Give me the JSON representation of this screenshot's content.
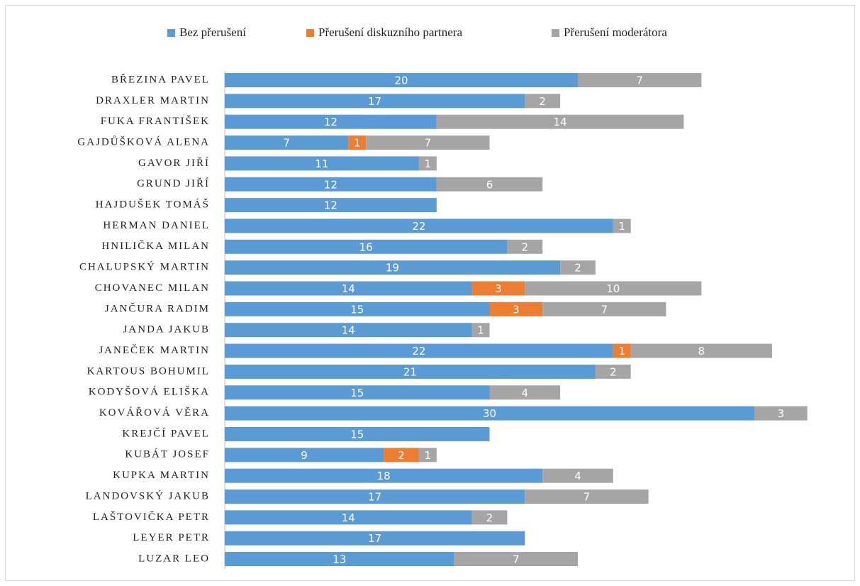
{
  "chart_data": {
    "type": "bar",
    "orientation": "horizontal",
    "stacked": true,
    "categories": [
      "BŘEZINA PAVEL",
      "DRAXLER MARTIN",
      "FUKA FRANTIŠEK",
      "GAJDŮŠKOVÁ ALENA",
      "GAVOR JIŘÍ",
      "GRUND JIŘÍ",
      "HAJDUŠEK TOMÁŠ",
      "HERMAN DANIEL",
      "HNILIČKA MILAN",
      "CHALUPSKÝ MARTIN",
      "CHOVANEC MILAN",
      "JANČURA RADIM",
      "JANDA JAKUB",
      "JANEČEK MARTIN",
      "KARTOUS BOHUMIL",
      "KODYŠOVÁ ELIŠKA",
      "KOVÁŘOVÁ VĚRA",
      "KREJČÍ PAVEL",
      "KUBÁT JOSEF",
      "KUPKA MARTIN",
      "LANDOVSKÝ JAKUB",
      "LAŠTOVIČKA PETR",
      "LEYER PETR",
      "LUZAR LEO"
    ],
    "series": [
      {
        "name": "Bez přerušení",
        "color": "#5b9bd5",
        "values": [
          20,
          17,
          12,
          7,
          11,
          12,
          12,
          22,
          16,
          19,
          14,
          15,
          14,
          22,
          21,
          15,
          30,
          15,
          9,
          18,
          17,
          14,
          17,
          13
        ]
      },
      {
        "name": "Přerušení diskuzního partnera",
        "color": "#ed7d31",
        "values": [
          null,
          null,
          null,
          1,
          null,
          null,
          null,
          null,
          null,
          null,
          3,
          3,
          null,
          1,
          null,
          null,
          null,
          null,
          2,
          null,
          null,
          null,
          null,
          null
        ]
      },
      {
        "name": "Přerušení moderátora",
        "color": "#a5a5a5",
        "values": [
          7,
          2,
          14,
          7,
          1,
          6,
          null,
          1,
          2,
          2,
          10,
          7,
          1,
          8,
          2,
          4,
          3,
          null,
          1,
          4,
          7,
          2,
          null,
          7
        ]
      }
    ],
    "legend": "top",
    "data_labels": true
  }
}
